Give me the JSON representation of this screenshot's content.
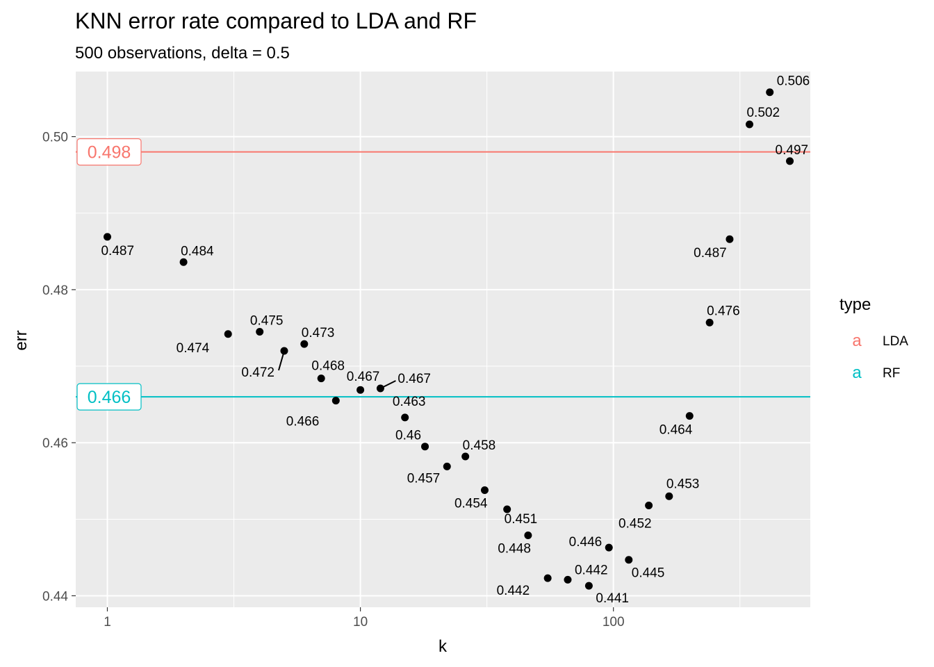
{
  "chart_data": {
    "type": "scatter",
    "title": "KNN error rate compared to LDA and RF",
    "subtitle": "500 observations, delta = 0.5",
    "xlabel": "k",
    "ylabel": "err",
    "x_scale": "log10",
    "xlim": [
      0.75,
      600
    ],
    "ylim": [
      0.4385,
      0.5085
    ],
    "x_ticks": [
      1,
      10,
      100
    ],
    "x_tick_labels": [
      "1",
      "10",
      "100"
    ],
    "y_ticks": [
      0.44,
      0.46,
      0.48,
      0.5
    ],
    "y_tick_labels": [
      "0.44",
      "0.46",
      "0.48",
      "0.50"
    ],
    "grid": true,
    "points": [
      {
        "k": 1,
        "err": 0.4869,
        "label": "0.487"
      },
      {
        "k": 2,
        "err": 0.4836,
        "label": "0.484"
      },
      {
        "k": 3,
        "err": 0.4742,
        "label": "0.474"
      },
      {
        "k": 4,
        "err": 0.4745,
        "label": "0.475"
      },
      {
        "k": 5,
        "err": 0.472,
        "label": "0.472"
      },
      {
        "k": 6,
        "err": 0.4729,
        "label": "0.473"
      },
      {
        "k": 7,
        "err": 0.4684,
        "label": "0.468"
      },
      {
        "k": 8,
        "err": 0.4655,
        "label": "0.466"
      },
      {
        "k": 10,
        "err": 0.4669,
        "label": "0.467"
      },
      {
        "k": 12,
        "err": 0.4671,
        "label": "0.467"
      },
      {
        "k": 15,
        "err": 0.4633,
        "label": "0.463"
      },
      {
        "k": 18,
        "err": 0.4595,
        "label": "0.46"
      },
      {
        "k": 22,
        "err": 0.4569,
        "label": "0.457"
      },
      {
        "k": 26,
        "err": 0.4582,
        "label": "0.458"
      },
      {
        "k": 31,
        "err": 0.4538,
        "label": "0.454"
      },
      {
        "k": 38,
        "err": 0.4513,
        "label": "0.451"
      },
      {
        "k": 46,
        "err": 0.4479,
        "label": "0.448"
      },
      {
        "k": 55,
        "err": 0.4423,
        "label": "0.442"
      },
      {
        "k": 66,
        "err": 0.4421,
        "label": "0.442"
      },
      {
        "k": 80,
        "err": 0.4413,
        "label": "0.441"
      },
      {
        "k": 96,
        "err": 0.4463,
        "label": "0.446"
      },
      {
        "k": 115,
        "err": 0.4447,
        "label": "0.445"
      },
      {
        "k": 138,
        "err": 0.4518,
        "label": "0.452"
      },
      {
        "k": 166,
        "err": 0.453,
        "label": "0.453"
      },
      {
        "k": 200,
        "err": 0.4635,
        "label": "0.464"
      },
      {
        "k": 240,
        "err": 0.4757,
        "label": "0.476"
      },
      {
        "k": 288,
        "err": 0.4866,
        "label": "0.487"
      },
      {
        "k": 345,
        "err": 0.5016,
        "label": "0.502"
      },
      {
        "k": 415,
        "err": 0.5058,
        "label": "0.506"
      },
      {
        "k": 498,
        "err": 0.4968,
        "label": "0.497"
      }
    ],
    "reference_lines": [
      {
        "name": "LDA",
        "value": 0.498,
        "label": "0.498",
        "color": "#F8766D"
      },
      {
        "name": "RF",
        "value": 0.466,
        "label": "0.466",
        "color": "#00BFC4"
      }
    ],
    "legend": {
      "title": "type",
      "placement": "right",
      "key_glyph": "a",
      "entries": [
        {
          "name": "LDA",
          "color": "#F8766D"
        },
        {
          "name": "RF",
          "color": "#00BFC4"
        }
      ]
    },
    "colors": {
      "panel_background": "#EBEBEB",
      "grid": "#FFFFFF",
      "point": "#000000"
    }
  }
}
